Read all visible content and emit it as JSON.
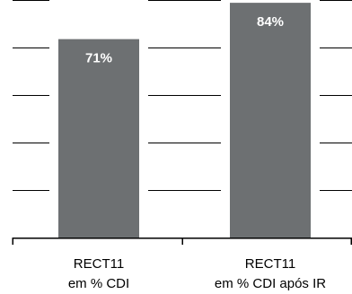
{
  "chart_data": {
    "type": "bar",
    "categories": [
      [
        "RECT11",
        "em % CDI"
      ],
      [
        "RECT11",
        "em % CDI após IR"
      ]
    ],
    "values": [
      71,
      84
    ],
    "data_labels": [
      "71%",
      "84%"
    ],
    "ylim": [
      0,
      85
    ],
    "grid": true,
    "bar_color": "#6d7072",
    "data_label_color": "#ffffff"
  }
}
